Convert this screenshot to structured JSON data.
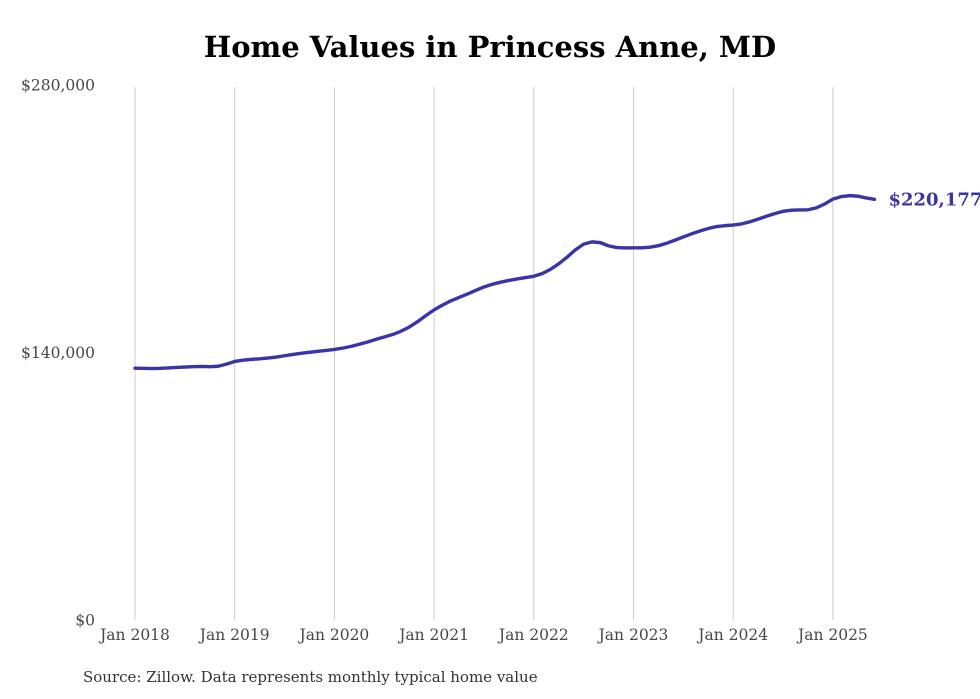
{
  "title": "Home Values in Princess Anne, MD",
  "source_note": "Source: Zillow. Data represents monthly typical home value",
  "end_label": "$220,177",
  "colors": {
    "line": "#3b34a6",
    "end_label": "#3b34a6",
    "grid": "#cccccc",
    "axis_text": "#474747",
    "title_text": "#000000",
    "source_text": "#333333"
  },
  "chart_data": {
    "type": "line",
    "title": "Home Values in Princess Anne, MD",
    "xlabel": "",
    "ylabel": "",
    "legend": "none",
    "grid": "vertical-only",
    "ylim": [
      0,
      280000
    ],
    "y_ticks": [
      {
        "label": "$280,000",
        "value": 280000
      },
      {
        "label": "$140,000",
        "value": 140000
      },
      {
        "label": "$0",
        "value": 0
      }
    ],
    "x_tick_labels": [
      "Jan 2018",
      "Jan 2019",
      "Jan 2020",
      "Jan 2021",
      "Jan 2022",
      "Jan 2023",
      "Jan 2024",
      "Jan 2025"
    ],
    "x_start_month": "Jan 2018",
    "x_end_month": "Jun 2025",
    "months_per_tick": 12,
    "series_name": "Typical home value ($)",
    "values": [
      131800,
      131700,
      131600,
      131700,
      131900,
      132200,
      132400,
      132600,
      132700,
      132600,
      132800,
      133900,
      135300,
      136000,
      136400,
      136700,
      137100,
      137600,
      138300,
      139000,
      139600,
      140100,
      140600,
      141100,
      141600,
      142300,
      143200,
      144300,
      145500,
      146900,
      148100,
      149400,
      151100,
      153300,
      156100,
      159300,
      162300,
      164800,
      167000,
      168800,
      170600,
      172500,
      174300,
      175700,
      176800,
      177700,
      178500,
      179200,
      179900,
      181300,
      183500,
      186400,
      189900,
      193700,
      196700,
      197900,
      197500,
      195800,
      194900,
      194700,
      194800,
      194800,
      195100,
      195900,
      197200,
      198800,
      200500,
      202100,
      203600,
      204900,
      205900,
      206400,
      206700,
      207300,
      208400,
      209800,
      211300,
      212700,
      213900,
      214500,
      214600,
      214700,
      215700,
      217700,
      220300,
      221600,
      222100,
      221800,
      220900,
      220177
    ],
    "end_value": 220177,
    "end_value_label": "$220,177"
  }
}
